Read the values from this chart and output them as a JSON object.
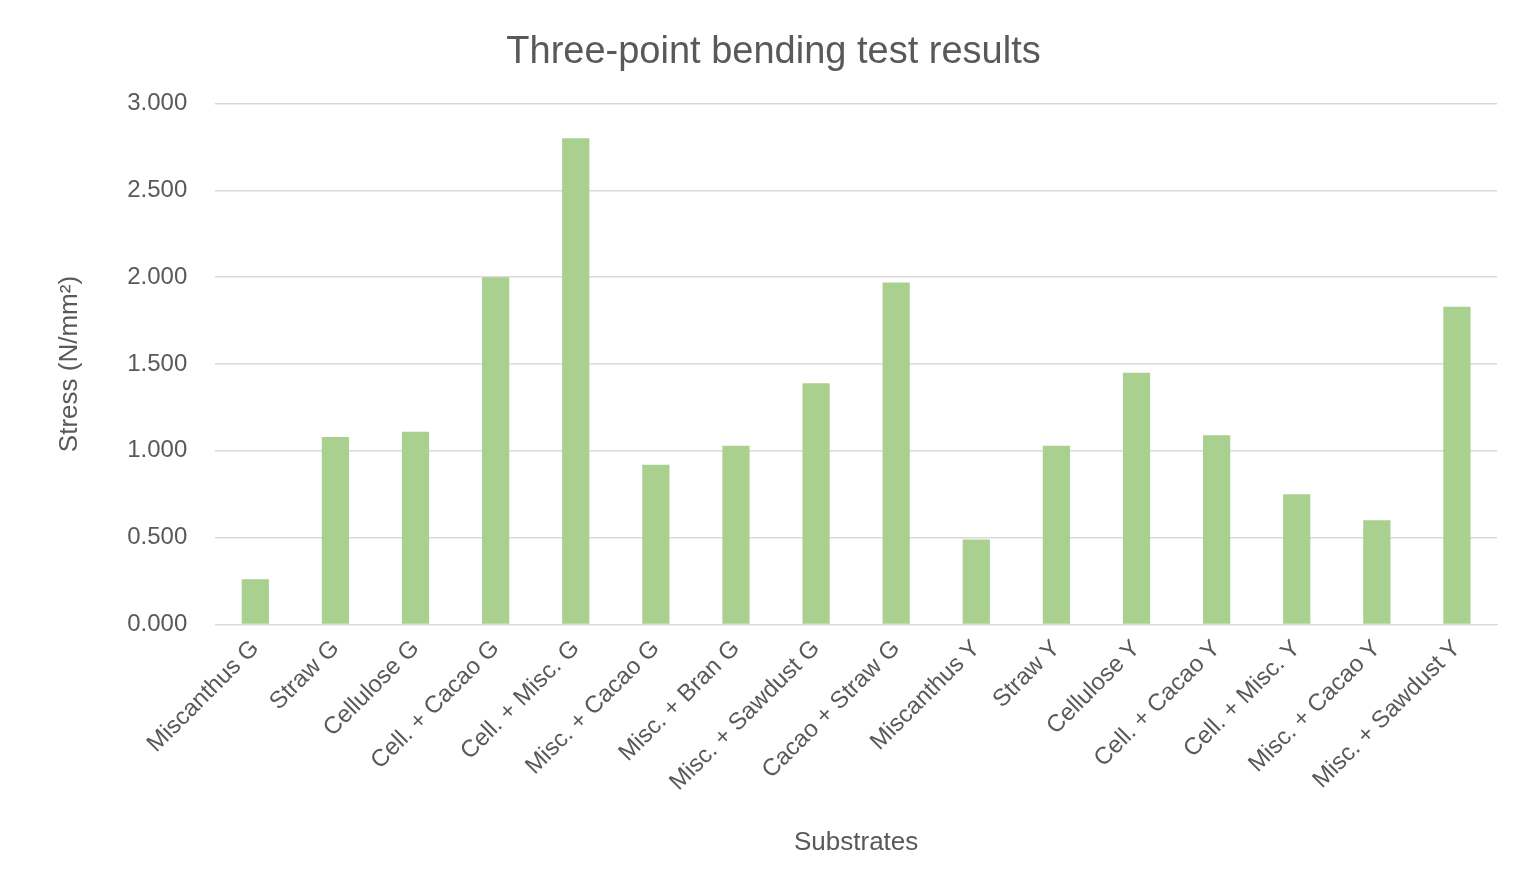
{
  "chart_data": {
    "type": "bar",
    "title": "Three-point bending test results",
    "xlabel": "Substrates",
    "ylabel": "Stress (N/mm²)",
    "categories": [
      "Miscanthus G",
      "Straw G",
      "Cellulose G",
      "Cell. + Cacao G",
      "Cell. + Misc. G",
      "Misc. + Cacao G",
      "Misc. + Bran G",
      "Misc. + Sawdust G",
      "Cacao + Straw G",
      "Miscanthus Y",
      "Straw Y",
      "Cellulose Y",
      "Cell. + Cacao Y",
      "Cell. + Misc. Y",
      "Misc. + Cacao Y",
      "Misc. + Sawdust Y"
    ],
    "values": [
      0.26,
      1.08,
      1.11,
      2.0,
      2.8,
      0.92,
      1.03,
      1.39,
      1.97,
      0.49,
      1.03,
      1.45,
      1.09,
      0.75,
      0.6,
      1.83
    ],
    "color": "#a9d08e",
    "ylim": [
      0,
      3
    ],
    "yticks": [
      {
        "value": 0,
        "label": "0.000"
      },
      {
        "value": 0.5,
        "label": "0.500"
      },
      {
        "value": 1,
        "label": "1.000"
      },
      {
        "value": 1.5,
        "label": "1.500"
      },
      {
        "value": 2,
        "label": "2.000"
      },
      {
        "value": 2.5,
        "label": "2.500"
      },
      {
        "value": 3,
        "label": "3.000"
      }
    ],
    "grid": "y",
    "legend": false
  }
}
